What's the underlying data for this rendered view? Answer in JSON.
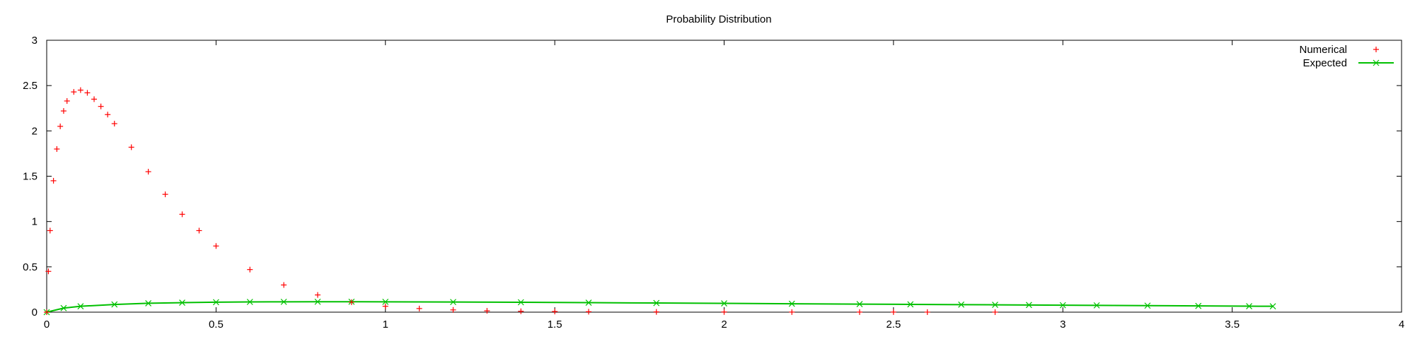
{
  "chart_data": {
    "type": "scatter",
    "title": "Probability Distribution",
    "xlabel": "",
    "ylabel": "",
    "xlim": [
      0,
      4
    ],
    "ylim": [
      0,
      3
    ],
    "xticks": [
      0,
      0.5,
      1,
      1.5,
      2,
      2.5,
      3,
      3.5,
      4
    ],
    "xtick_labels": [
      "0",
      "0.5",
      "1",
      "1.5",
      "2",
      "2.5",
      "3",
      "3.5",
      "4"
    ],
    "yticks": [
      0,
      0.5,
      1,
      1.5,
      2,
      2.5,
      3
    ],
    "ytick_labels": [
      "0",
      "0.5",
      "1",
      "1.5",
      "2",
      "2.5",
      "3"
    ],
    "grid": false,
    "legend_position": "top-right",
    "series": [
      {
        "name": "Numerical",
        "style": "points",
        "marker": "+",
        "color": "#ff0000",
        "x": [
          0.0,
          0.005,
          0.01,
          0.02,
          0.03,
          0.04,
          0.05,
          0.06,
          0.08,
          0.1,
          0.12,
          0.14,
          0.16,
          0.18,
          0.2,
          0.25,
          0.3,
          0.35,
          0.4,
          0.45,
          0.5,
          0.6,
          0.7,
          0.8,
          0.9,
          1.0,
          1.1,
          1.2,
          1.3,
          1.4,
          1.5,
          1.6,
          1.8,
          2.0,
          2.2,
          2.4,
          2.5,
          2.6,
          2.8
        ],
        "y": [
          0.0,
          0.45,
          0.9,
          1.45,
          1.8,
          2.05,
          2.22,
          2.33,
          2.43,
          2.45,
          2.42,
          2.35,
          2.27,
          2.18,
          2.08,
          1.82,
          1.55,
          1.3,
          1.08,
          0.9,
          0.73,
          0.47,
          0.3,
          0.19,
          0.11,
          0.065,
          0.04,
          0.025,
          0.015,
          0.01,
          0.007,
          0.005,
          0.003,
          0.002,
          0.001,
          0.001,
          0.001,
          0.0005,
          0.0005
        ]
      },
      {
        "name": "Expected",
        "style": "linespoints",
        "marker": "x",
        "color": "#00c000",
        "x": [
          0.0,
          0.05,
          0.1,
          0.2,
          0.3,
          0.4,
          0.5,
          0.6,
          0.7,
          0.8,
          0.9,
          1.0,
          1.2,
          1.4,
          1.6,
          1.8,
          2.0,
          2.2,
          2.4,
          2.55,
          2.7,
          2.8,
          2.9,
          3.0,
          3.1,
          3.25,
          3.4,
          3.55,
          3.62
        ],
        "y": [
          0.0,
          0.045,
          0.065,
          0.085,
          0.098,
          0.105,
          0.11,
          0.113,
          0.114,
          0.115,
          0.115,
          0.114,
          0.112,
          0.109,
          0.105,
          0.101,
          0.097,
          0.093,
          0.089,
          0.086,
          0.083,
          0.081,
          0.079,
          0.077,
          0.075,
          0.072,
          0.069,
          0.066,
          0.065
        ]
      }
    ]
  }
}
